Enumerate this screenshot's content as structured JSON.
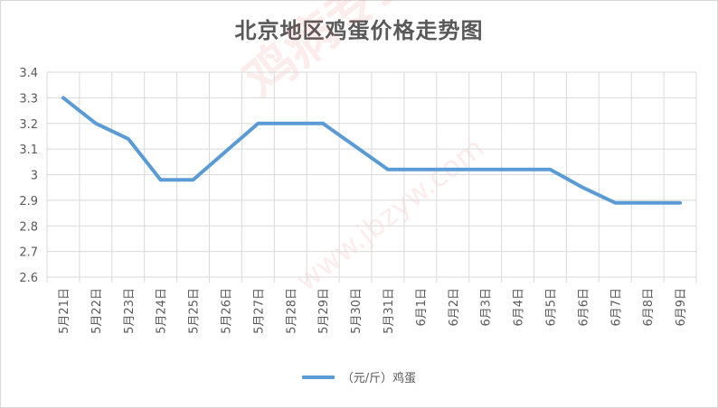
{
  "chart_data": {
    "type": "line",
    "title": "北京地区鸡蛋价格走势图",
    "categories": [
      "5月21日",
      "5月22日",
      "5月23日",
      "5月24日",
      "5月25日",
      "5月26日",
      "5月27日",
      "5月28日",
      "5月29日",
      "5月30日",
      "5月31日",
      "6月1日",
      "6月2日",
      "6月3日",
      "6月4日",
      "6月5日",
      "6月6日",
      "6月7日",
      "6月8日",
      "6月9日"
    ],
    "series": [
      {
        "name": "（元/斤）鸡蛋",
        "color": "#5b9bd5",
        "values": [
          3.3,
          3.2,
          3.14,
          2.98,
          2.98,
          3.09,
          3.2,
          3.2,
          3.2,
          3.11,
          3.02,
          3.02,
          3.02,
          3.02,
          3.02,
          3.02,
          2.95,
          2.89,
          2.89,
          2.89
        ]
      }
    ],
    "ylim": [
      2.6,
      3.4
    ],
    "yticks": [
      "2.6",
      "2.7",
      "2.8",
      "2.9",
      "3",
      "3.1",
      "3.2",
      "3.3",
      "3.4"
    ],
    "grid": true,
    "legend_position": "bottom"
  },
  "watermark": {
    "text": "鸡病专业网 www.jbzyw.com"
  }
}
